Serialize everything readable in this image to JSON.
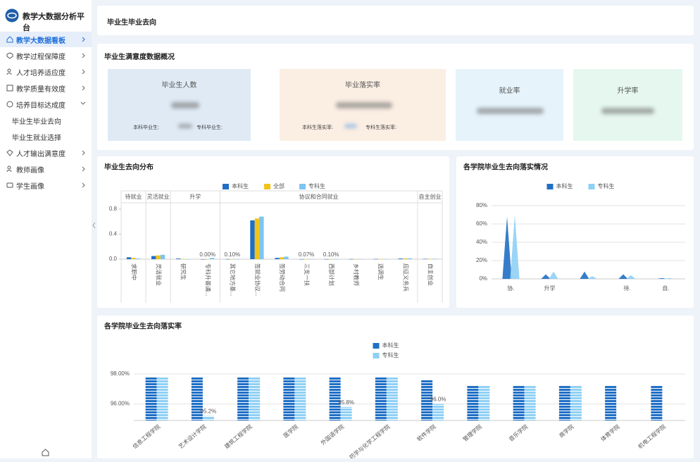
{
  "sidebar": {
    "title": "教学大数据分析平台",
    "menu": [
      "教学大数据看板",
      "教学过程保障度",
      "人才培养适应度",
      "教学质量有效度",
      "培养目标达成度",
      "人才输出满意度",
      "教师画像",
      "学生画像"
    ],
    "submenu": [
      "毕业生毕业去向",
      "毕业生就业选择"
    ]
  },
  "header": {
    "title": "毕业生毕业去向"
  },
  "overview": {
    "title": "毕业生满意度数据概况",
    "cards": [
      {
        "label": "毕业生人数",
        "details": [
          "本科毕业生:",
          "专科毕业生:"
        ]
      },
      {
        "label": "毕业落实率",
        "details": [
          "本科生落实率:",
          "专科生落实率:"
        ]
      },
      {
        "label": "就业率"
      },
      {
        "label": "升学率"
      }
    ]
  },
  "chart_data": [
    {
      "type": "bar",
      "title": "毕业生去向分布",
      "legend": "top",
      "grid": false,
      "categories": [
        "求职中",
        "灵活就业",
        "研究生",
        "专科升普通...",
        "其它地方基...",
        "签就业协议...",
        "签劳动合同",
        "三支一扶",
        "西部计划",
        "乡村教师",
        "选调生",
        "应征义务兵",
        "自主创业"
      ],
      "category_groups": [
        "待就业",
        "灵活就业",
        "升学",
        "升学",
        "协议和合同就业",
        "协议和合同就业",
        "协议和合同就业",
        "协议和合同就业",
        "协议和合同就业",
        "协议和合同就业",
        "协议和合同就业",
        "协议和合同就业",
        "自主创业"
      ],
      "ylim": [
        0,
        0.9
      ],
      "yticks": [
        {
          "value": 0,
          "label": "0.0"
        },
        0.4,
        0.8
      ],
      "series": [
        {
          "name": "本科生",
          "color": "#1f6fc5",
          "values": [
            0.03,
            0.05,
            0.01,
            0,
            0.001,
            0.62,
            0.02,
            0.001,
            0.001,
            0.002,
            0.003,
            0.01,
            0.005
          ]
        },
        {
          "name": "全部",
          "color": "#f0c419",
          "values": [
            0.02,
            0.06,
            0.005,
            0,
            0.001,
            0.65,
            0.03,
            0.0007,
            0.001,
            0.002,
            0.003,
            0.012,
            0.006
          ],
          "value_labels": [
            null,
            null,
            null,
            "0.00%",
            "0.10%",
            null,
            null,
            "0.07%",
            "0.10%",
            null,
            null,
            null,
            null
          ]
        },
        {
          "name": "专科生",
          "color": "#7ec4f0",
          "values": [
            0.01,
            0.07,
            0,
            0.02,
            0.001,
            0.68,
            0.04,
            0.001,
            0.001,
            0.002,
            0.003,
            0.014,
            0.007
          ]
        }
      ]
    },
    {
      "type": "area",
      "title": "各学院毕业生去向落实情况",
      "legend": "top",
      "grid": true,
      "categories": [
        "协.",
        "升学",
        null,
        "待.",
        "自."
      ],
      "ylim": [
        0,
        80
      ],
      "yticks": [
        {
          "value": 0,
          "label": "0%"
        },
        {
          "value": 20,
          "label": "20%"
        },
        {
          "value": 40,
          "label": "40%"
        },
        {
          "value": 60,
          "label": "60%"
        },
        {
          "value": 80,
          "label": "80%"
        }
      ],
      "series": [
        {
          "name": "本科生",
          "color": "#1f6fc5",
          "values": [
            68,
            5,
            8,
            5,
            1
          ]
        },
        {
          "name": "专科生",
          "color": "#8fd0f5",
          "values": [
            70,
            8,
            3,
            4,
            1
          ]
        }
      ]
    },
    {
      "type": "bar",
      "title": "各学院毕业生去向落实率",
      "legend": "top",
      "legend_orient": "vertical",
      "grid": true,
      "bar_style": "striped",
      "categories": [
        "信息工程学院",
        "艺术设计学院",
        "建筑工程学院",
        "医学院",
        "外国语学院",
        "药学与化学工程学院",
        "软件学院",
        "管理学院",
        "音乐学院",
        "商学院",
        "体育学院",
        "机电工程学院"
      ],
      "ylim": [
        94.9,
        98.8
      ],
      "yticks": [
        {
          "value": 96,
          "label": "96.00%"
        },
        {
          "value": 98,
          "label": "98.00%"
        }
      ],
      "series": [
        {
          "name": "本科生",
          "color": "#1f6fc5",
          "values": [
            97.8,
            97.8,
            97.8,
            97.8,
            97.8,
            97.8,
            97.6,
            97.2,
            97.2,
            97.2,
            97.2,
            97.2
          ]
        },
        {
          "name": "专科生",
          "color": "#8fd0f5",
          "values": [
            97.8,
            95.2,
            97.8,
            97.8,
            95.8,
            97.8,
            96.0,
            97.2,
            97.2,
            97.2,
            null,
            null
          ],
          "value_labels": [
            null,
            "95.2%",
            null,
            null,
            "95.8%",
            null,
            "96.0%",
            null,
            null,
            null,
            null,
            null
          ]
        }
      ]
    }
  ]
}
